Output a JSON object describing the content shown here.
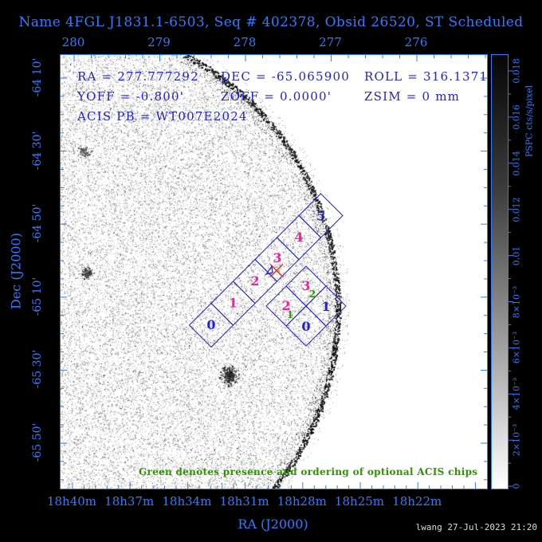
{
  "title": "Name 4FGL J1831.1-6503, Seq # 402378, Obsid 26520, ST Scheduled",
  "overlay_rows": [
    [
      "RA = 277.777292",
      "DEC = -65.065900",
      "ROLL = 316.1371"
    ],
    [
      "YOFF = -0.800'",
      "ZOFF = 0.0000'",
      "ZSIM = 0 mm"
    ],
    [
      "ACIS PB = WT007E2024"
    ]
  ],
  "axes": {
    "top_ticks": [
      "280",
      "279",
      "278",
      "277",
      "276"
    ],
    "bottom_ticks": [
      "18h40m",
      "18h37m",
      "18h34m",
      "18h31m",
      "18h28m",
      "18h25m",
      "18h22m"
    ],
    "bottom_label": "RA (J2000)",
    "left_ticks": [
      "-64 10'",
      "-64 30'",
      "-64 50'",
      "-65 10'",
      "-65 30'",
      "-65 50'"
    ],
    "left_label": "Dec (J2000)"
  },
  "colorbar": {
    "tick_labels": [
      "0.018",
      "0.016",
      "0.014",
      "0.012",
      "0.01",
      "8×10⁻³",
      "6×10⁻³",
      "4×10⁻³",
      "2×10⁻³",
      "0"
    ],
    "unit_label": "PSPC cts/s/pixel"
  },
  "fov": {
    "acis_s_chips": [
      {
        "label": "0",
        "color": "blue"
      },
      {
        "label": "1",
        "color": "magenta"
      },
      {
        "label": "2",
        "color": "magenta"
      },
      {
        "label": "3",
        "color": "magenta"
      },
      {
        "label": "4",
        "color": "magenta"
      },
      {
        "label": "5",
        "color": "blue"
      }
    ],
    "acis_i_chips": [
      {
        "label": "3",
        "color": "magenta",
        "order": "2"
      },
      {
        "label": "2",
        "color": "magenta",
        "order": "1"
      },
      {
        "label": "1",
        "color": "blue"
      },
      {
        "label": "0",
        "color": "blue"
      }
    ]
  },
  "annotation": "Green denotes presence and ordering of optional ACIS chips",
  "footer": "lwang 27-Jul-2023 21:20",
  "colors": {
    "background": "#000000",
    "axis_blue": "#2e7dff",
    "plot_blue": "#2222cc",
    "overlay_blue": "#2020dd",
    "magenta": "#ee2299",
    "green": "#2f9400",
    "red": "#dd3322",
    "footer_gray": "#dcdcdc"
  },
  "chart_data": {
    "type": "heatmap",
    "title": "Name 4FGL J1831.1-6503, Seq # 402378, Obsid 26520, ST Scheduled",
    "xlabel": "RA (J2000)",
    "ylabel": "Dec (J2000)",
    "x_ticks_bottom": [
      "18h40m",
      "18h37m",
      "18h34m",
      "18h31m",
      "18h28m",
      "18h25m",
      "18h22m"
    ],
    "x_ticks_top_degrees": [
      "280",
      "279",
      "278",
      "277",
      "276"
    ],
    "y_ticks": [
      "-64 10'",
      "-64 30'",
      "-64 50'",
      "-65 10'",
      "-65 30'",
      "-65 50'"
    ],
    "colorbar": {
      "label": "PSPC cts/s/pixel",
      "tick_labels": [
        "0.018",
        "0.016",
        "0.014",
        "0.012",
        "0.01",
        "8×10⁻³",
        "6×10⁻³",
        "4×10⁻³",
        "2×10⁻³",
        "0"
      ],
      "min": 0,
      "max": 0.018
    },
    "pointing": {
      "ra_deg": 277.777292,
      "dec_deg": -65.0659,
      "roll_deg": 316.1371,
      "yoff_arcmin": -0.8,
      "zoff_arcmin": 0.0,
      "zsim_mm": 0,
      "acis_pb": "WT007E2024"
    },
    "overlays": {
      "acis_s_chip_labels": [
        "0",
        "1",
        "2",
        "3",
        "4",
        "5"
      ],
      "acis_i_chip_labels": [
        "3",
        "2",
        "1",
        "0"
      ],
      "optional_chip_order": {
        "I2": "1",
        "I3": "2"
      },
      "aimpoint_marker": "red X on ACIS-S3"
    }
  }
}
